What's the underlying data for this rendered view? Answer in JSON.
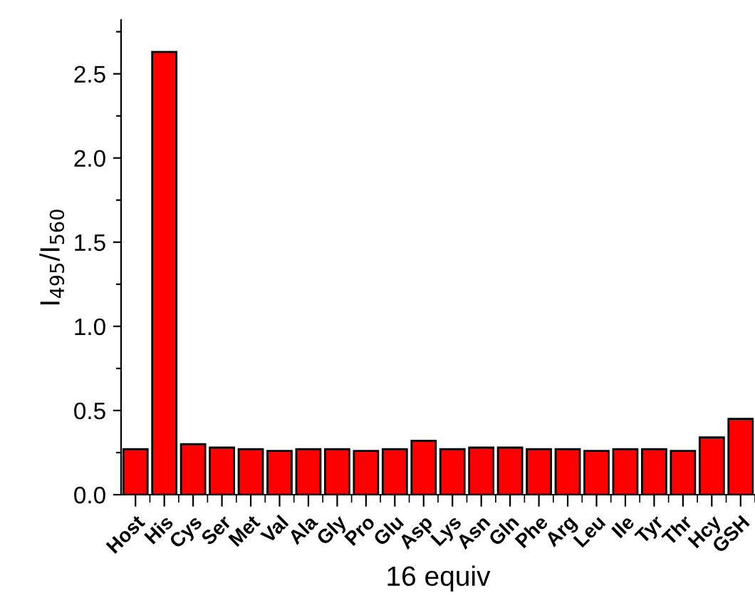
{
  "chart_data": {
    "type": "bar",
    "xlabel": "16 equiv",
    "ylabel": "I$_{495}$/I$_{560}$",
    "categories": [
      "Host",
      "His",
      "Cys",
      "Ser",
      "Met",
      "Val",
      "Ala",
      "Gly",
      "Pro",
      "Glu",
      "Asp",
      "Lys",
      "Asn",
      "Gln",
      "Phe",
      "Arg",
      "Leu",
      "Ile",
      "Tyr",
      "Thr",
      "Hcy",
      "GSH"
    ],
    "values": [
      0.27,
      2.63,
      0.3,
      0.28,
      0.27,
      0.26,
      0.27,
      0.27,
      0.26,
      0.27,
      0.32,
      0.27,
      0.28,
      0.28,
      0.27,
      0.27,
      0.26,
      0.27,
      0.27,
      0.26,
      0.34,
      0.45
    ],
    "color": "#ff0000",
    "ylim": [
      0,
      2.82
    ],
    "yticks": [
      {
        "value": 0,
        "label": "0.0"
      },
      {
        "value": 0.25,
        "label": null
      },
      {
        "value": 0.5,
        "label": "0.5"
      },
      {
        "value": 0.75,
        "label": null
      },
      {
        "value": 1.0,
        "label": "1.0"
      },
      {
        "value": 1.25,
        "label": null
      },
      {
        "value": 1.5,
        "label": "1.5"
      },
      {
        "value": 1.75,
        "label": null
      },
      {
        "value": 2.0,
        "label": "2.0"
      },
      {
        "value": 2.25,
        "label": null
      },
      {
        "value": 2.5,
        "label": "2.5"
      },
      {
        "value": 2.75,
        "label": null
      }
    ],
    "grid": false,
    "legend": false
  }
}
